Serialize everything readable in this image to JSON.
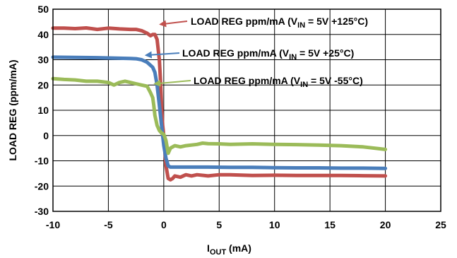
{
  "chart_data": {
    "type": "line",
    "title": "",
    "xlabel_main": "I",
    "xlabel_sub": "OUT",
    "xlabel_unit": " (mA)",
    "ylabel": "LOAD REG (ppm/mA)",
    "xlim": [
      -10,
      25
    ],
    "ylim": [
      -30,
      50
    ],
    "xticks": [
      -10,
      -5,
      0,
      5,
      10,
      15,
      20,
      25
    ],
    "yticks": [
      -30,
      -20,
      -10,
      0,
      10,
      20,
      30,
      40,
      50
    ],
    "grid": true,
    "legend": "none",
    "series": [
      {
        "name": "LOAD REG ppm/mA (V_IN = 5V +125°C)",
        "label_parts": [
          "LOAD REG ppm/mA (V",
          "IN",
          " = 5V +125°C)"
        ],
        "color": "#c0504d",
        "x": [
          -10,
          -9,
          -8,
          -7,
          -6,
          -5,
          -4,
          -3,
          -2.5,
          -2,
          -1.5,
          -1.2,
          -1.0,
          -0.8,
          -0.6,
          -0.4,
          -0.3,
          -0.2,
          -0.1,
          0.0,
          0.1,
          0.2,
          0.4,
          0.6,
          0.8,
          1.0,
          1.5,
          2.0,
          2.5,
          3,
          4,
          5,
          6,
          8,
          10,
          12,
          14,
          16,
          18,
          20
        ],
        "y": [
          42.5,
          42.5,
          42.3,
          42.6,
          42.0,
          42.5,
          42.2,
          42.0,
          42.0,
          41.5,
          40.5,
          39.5,
          40.0,
          40.0,
          38.0,
          30.0,
          22.0,
          12.0,
          4.0,
          0.0,
          -6.0,
          -12.0,
          -17.0,
          -17.5,
          -17.0,
          -16.0,
          -16.5,
          -15.5,
          -16.0,
          -15.5,
          -16.0,
          -15.5,
          -15.5,
          -15.8,
          -15.7,
          -15.8,
          -15.8,
          -15.8,
          -15.9,
          -16.0
        ]
      },
      {
        "name": "LOAD REG ppm/mA (V_IN = 5V +25°C)",
        "label_parts": [
          "LOAD REG ppm/mA (V",
          "IN",
          " = 5V +25°C)"
        ],
        "color": "#4a7ebb",
        "x": [
          -10,
          -8,
          -6,
          -4,
          -3,
          -2.5,
          -2,
          -1.5,
          -1.0,
          -0.8,
          -0.6,
          -0.4,
          -0.2,
          0.0,
          0.2,
          0.4,
          0.6,
          1.0,
          2,
          4,
          6,
          8,
          10,
          12,
          14,
          16,
          18,
          20
        ],
        "y": [
          31.0,
          30.9,
          30.8,
          30.6,
          30.5,
          30.4,
          30.0,
          29.0,
          27.0,
          25.0,
          20.0,
          12.0,
          4.0,
          -4.0,
          -9.0,
          -12.0,
          -12.5,
          -12.5,
          -12.5,
          -12.5,
          -12.6,
          -12.6,
          -12.7,
          -12.8,
          -12.8,
          -12.9,
          -12.9,
          -13.0
        ]
      },
      {
        "name": "LOAD REG ppm/mA (V_IN = 5V -55°C)",
        "label_parts": [
          "LOAD REG ppm/mA (V",
          "IN",
          " = 5V -55°C)"
        ],
        "color": "#9bbb59",
        "x": [
          -10,
          -9,
          -8,
          -7,
          -6,
          -5,
          -4.5,
          -4,
          -3.5,
          -3,
          -2.5,
          -2,
          -1.5,
          -1.2,
          -1.0,
          -0.9,
          -0.8,
          -0.6,
          -0.4,
          -0.2,
          0.0,
          0.2,
          0.4,
          0.6,
          1.0,
          1.5,
          2,
          3,
          3.5,
          4,
          5,
          6,
          8,
          10,
          12,
          14,
          16,
          18,
          20
        ],
        "y": [
          22.5,
          22.2,
          22.0,
          21.5,
          21.5,
          21.0,
          20.0,
          21.0,
          21.5,
          21.0,
          20.5,
          20.0,
          19.5,
          17.0,
          15.0,
          12.0,
          8.0,
          4.0,
          2.0,
          1.0,
          0.5,
          -2.0,
          -7.0,
          -5.0,
          -4.0,
          -4.5,
          -4.0,
          -3.5,
          -3.0,
          -3.2,
          -3.3,
          -3.5,
          -3.3,
          -3.5,
          -3.6,
          -3.8,
          -4.0,
          -4.5,
          -5.5
        ]
      }
    ],
    "annotations": [
      {
        "series": 0,
        "point": [
          -0.3,
          44
        ]
      },
      {
        "series": 1,
        "point": [
          -1.6,
          31.8
        ]
      },
      {
        "series": 2,
        "point": [
          -0.8,
          20.5
        ]
      }
    ]
  }
}
